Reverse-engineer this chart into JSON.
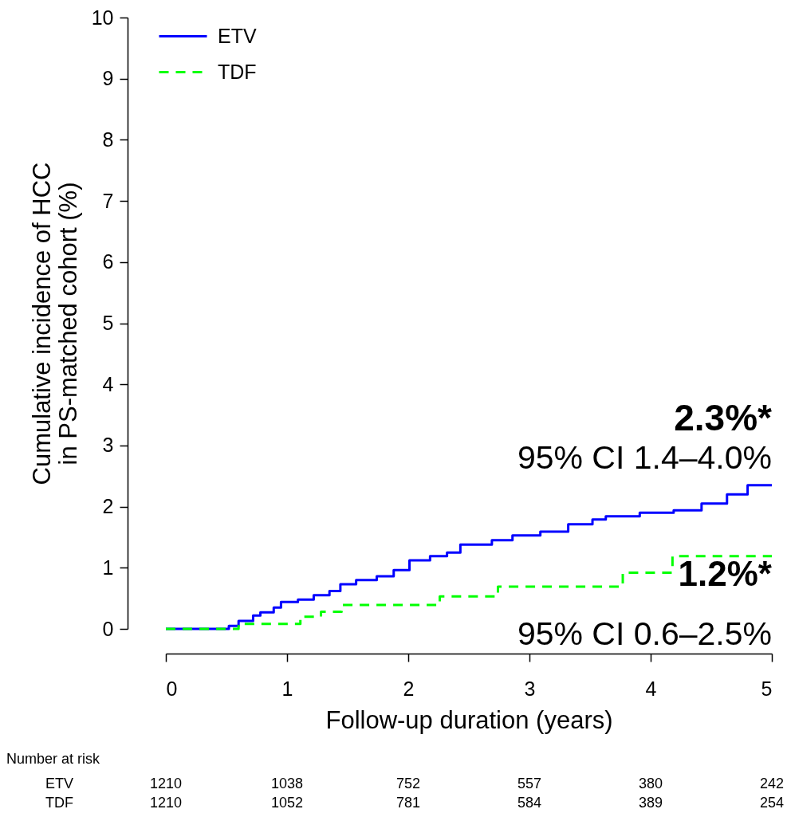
{
  "chart_data": {
    "type": "step",
    "xlabel": "Follow-up duration (years)",
    "ylabel": "Cumulative incidence of HCC\nin PS-matched cohort (%)",
    "xlim": [
      0,
      5
    ],
    "xticks": [
      0,
      1,
      2,
      3,
      4,
      5
    ],
    "ylim": [
      0,
      10
    ],
    "yticks": [
      0,
      1,
      2,
      3,
      4,
      5,
      6,
      7,
      8,
      9,
      10
    ],
    "grid": false,
    "legend": "top left",
    "series": [
      {
        "name": "ETV",
        "color": "#0000ff",
        "line_style": "solid",
        "x": [
          0,
          0.52,
          0.6,
          0.72,
          0.78,
          0.89,
          0.95,
          1.09,
          1.22,
          1.35,
          1.44,
          1.57,
          1.74,
          1.88,
          2.01,
          2.18,
          2.32,
          2.43,
          2.69,
          2.86,
          3.09,
          3.32,
          3.52,
          3.63,
          3.91,
          4.19,
          4.42,
          4.63,
          4.8,
          5
        ],
        "values": [
          0,
          0.05,
          0.13,
          0.22,
          0.27,
          0.35,
          0.44,
          0.48,
          0.55,
          0.62,
          0.73,
          0.8,
          0.86,
          0.96,
          1.12,
          1.19,
          1.25,
          1.38,
          1.45,
          1.53,
          1.59,
          1.71,
          1.79,
          1.84,
          1.9,
          1.94,
          2.05,
          2.2,
          2.35,
          2.35
        ]
      },
      {
        "name": "TDF",
        "color": "#00ff00",
        "line_style": "dashed",
        "x": [
          0,
          0.6,
          1.11,
          1.28,
          1.45,
          2.26,
          2.74,
          3.77,
          4.18,
          5
        ],
        "values": [
          0,
          0.08,
          0.2,
          0.28,
          0.39,
          0.53,
          0.69,
          0.92,
          1.19,
          1.19
        ]
      }
    ],
    "annotations": [
      "2.3%*",
      "95% CI 1.4–4.0%",
      "1.2%*",
      "95% CI 0.6–2.5%",
      "Number at risk",
      "ETV 1210 1038 752 557 380 242",
      "TDF 1210 1052 781 584 389 254"
    ]
  }
}
